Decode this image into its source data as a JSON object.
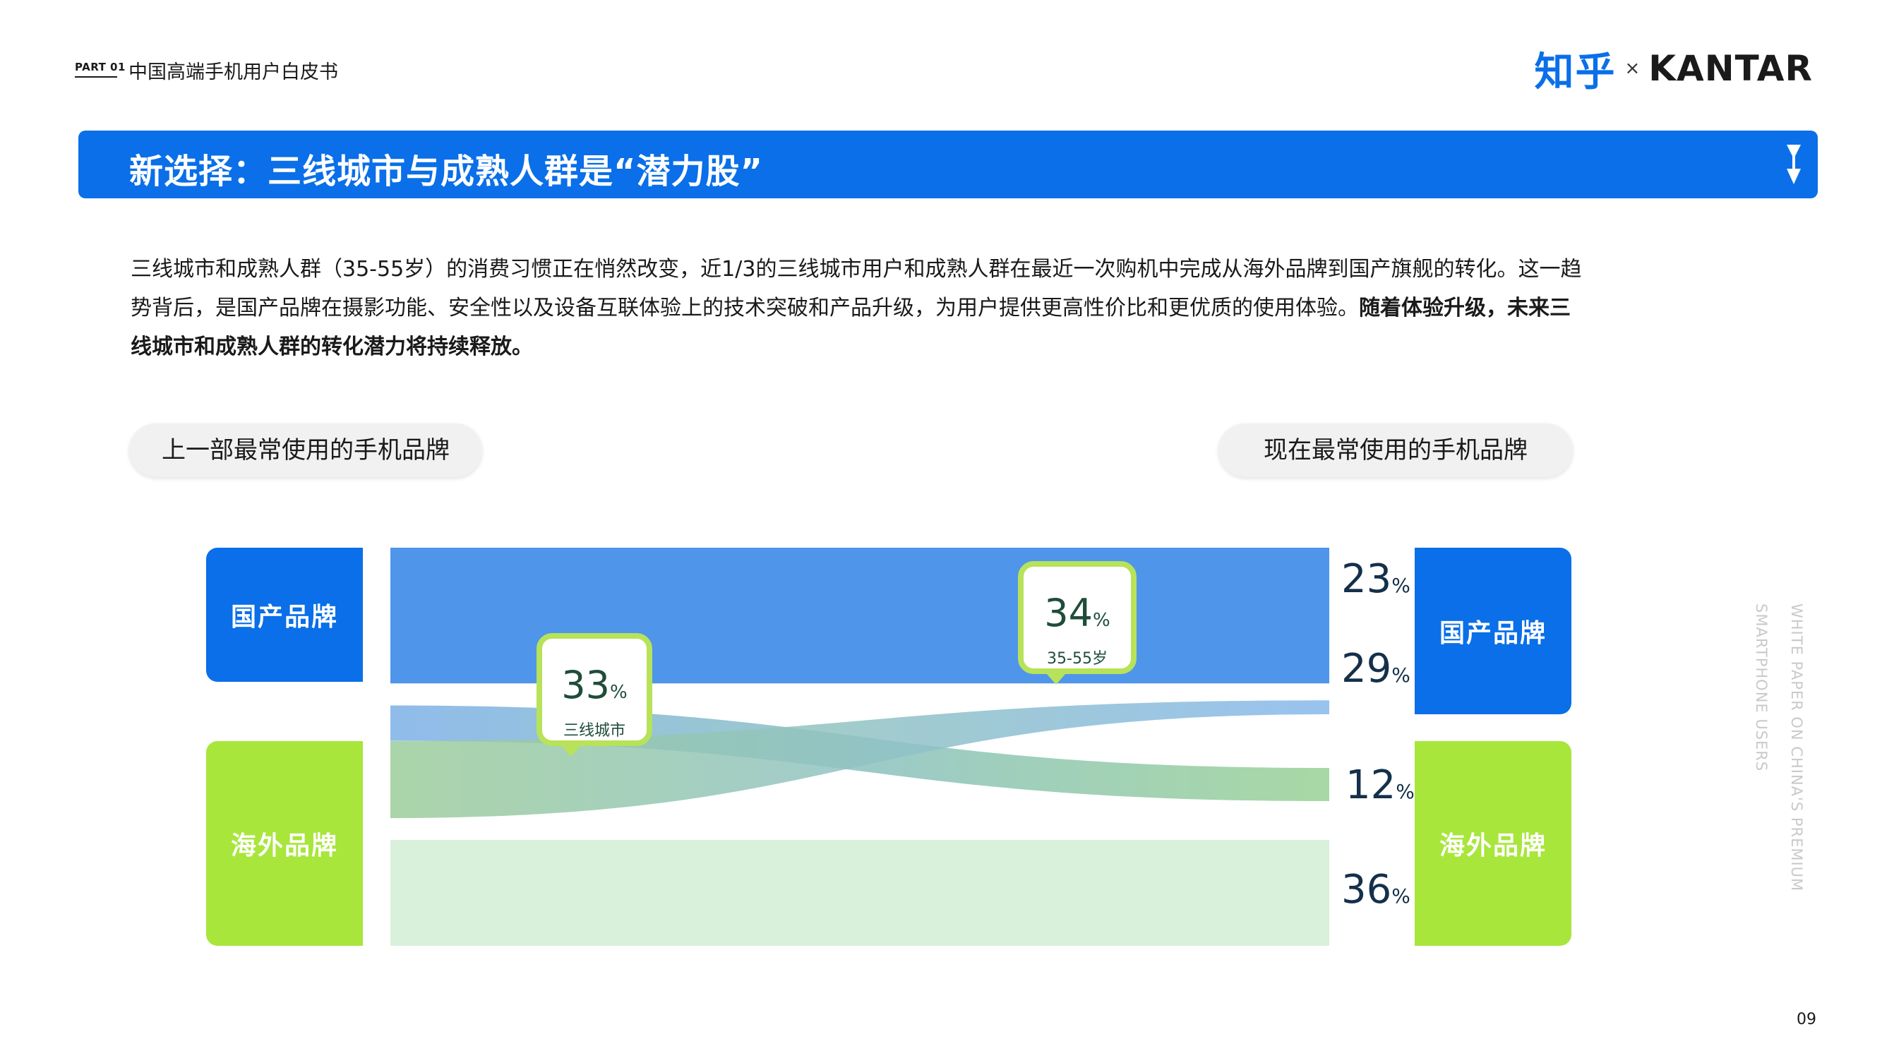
{
  "header": {
    "part_label": "PART 01",
    "report_title": "中国高端手机用户白皮书",
    "logo_left": "知乎",
    "logo_x": "×",
    "logo_right": "KANTAR"
  },
  "banner": {
    "title": "新选择：三线城市与成熟人群是“潜力股”"
  },
  "intro": {
    "normal": "三线城市和成熟人群（35-55岁）的消费习惯正在悄然改变，近1/3的三线城市用户和成熟人群在最近一次购机中完成从海外品牌到国产旗舰的转化。这一趋势背后，是国产品牌在摄影功能、安全性以及设备互联体验上的技术突破和产品升级，为用户提供更高性价比和更优质的使用体验。",
    "bold": "随着体验升级，未来三线城市和成熟人群的转化潜力将持续释放。"
  },
  "pills": {
    "left": "上一部最常使用的手机品牌",
    "right": "现在最常使用的手机品牌"
  },
  "chart_data": {
    "type": "sankey",
    "left_nodes": [
      "国产品牌",
      "海外品牌"
    ],
    "right_nodes": [
      "国产品牌",
      "海外品牌"
    ],
    "flows": [
      {
        "from": "国产品牌",
        "to": "国产品牌",
        "value": 23,
        "label": "23%"
      },
      {
        "from": "海外品牌",
        "to": "国产品牌",
        "value": 29,
        "label": "29%"
      },
      {
        "from": "国产品牌",
        "to": "海外品牌",
        "value": 12,
        "label": "12%"
      },
      {
        "from": "海外品牌",
        "to": "海外品牌",
        "value": 36,
        "label": "36%"
      }
    ],
    "callouts": [
      {
        "value": "33",
        "unit": "%",
        "label": "三线城市"
      },
      {
        "value": "34",
        "unit": "%",
        "label": "35-55岁"
      }
    ],
    "colors": {
      "domestic": "#0a6fe8",
      "foreign": "#a8e63c",
      "dom_to_dom": "#4f95e9",
      "for_to_dom_start": "#9ccd9a",
      "for_to_dom_end": "#86b8ec",
      "dom_to_for_start": "#8ab8ea",
      "dom_to_for_end": "#a3d6a0",
      "for_to_for": "#d9f0da"
    }
  },
  "side_text": {
    "line1": "WHITE PAPER ON CHINA'S PREMIUM",
    "line2": "SMARTPHONE USERS"
  },
  "page_number": "09"
}
